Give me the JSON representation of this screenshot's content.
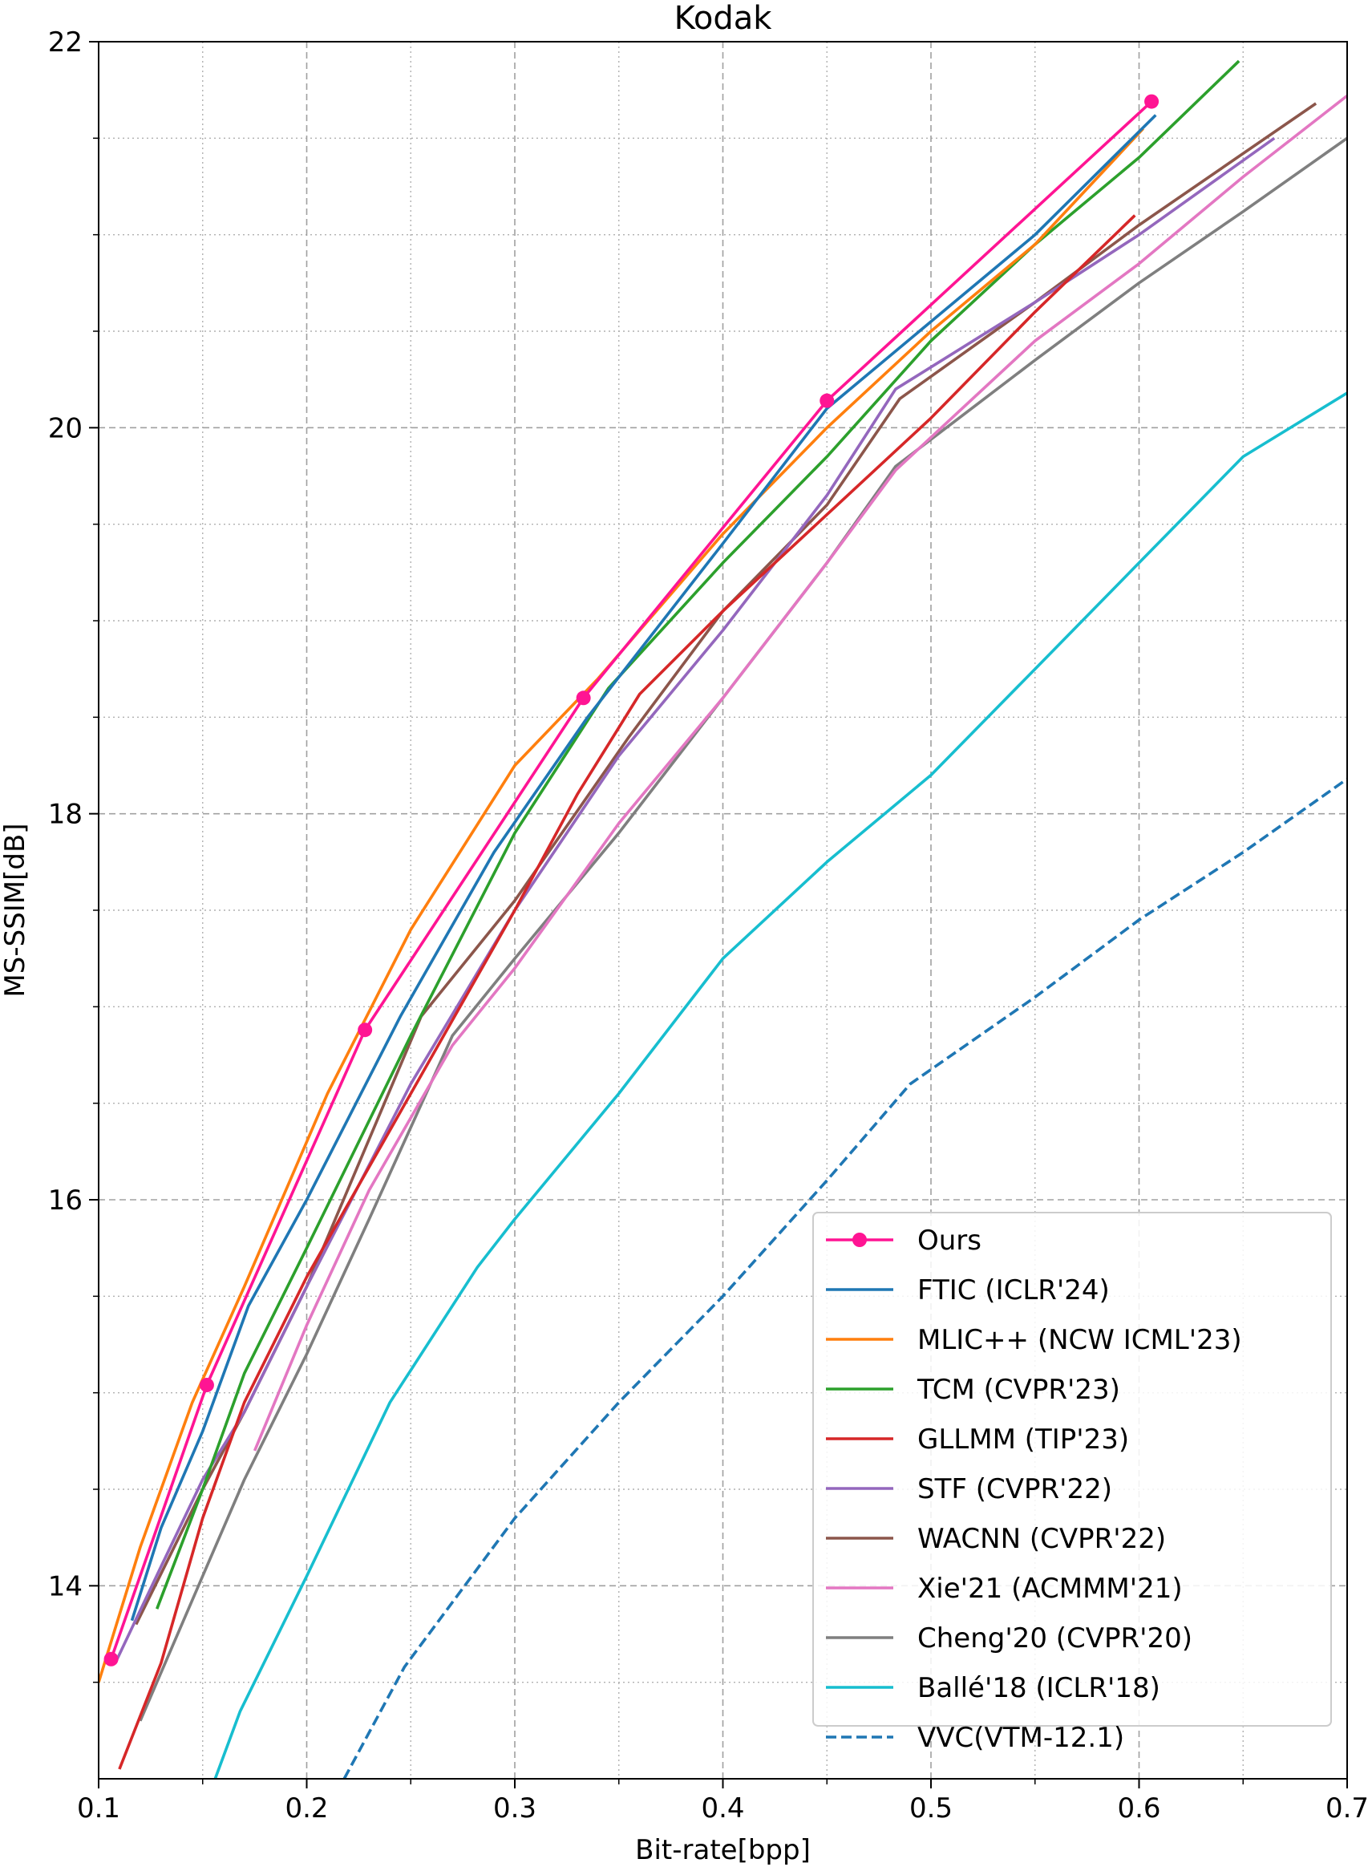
{
  "chart_data": {
    "type": "line",
    "title": "Kodak",
    "xlabel": "Bit-rate[bpp]",
    "ylabel": "MS-SSIM[dB]",
    "xlim": [
      0.1,
      0.7
    ],
    "ylim": [
      13.0,
      22.0
    ],
    "xticks": [
      0.1,
      0.2,
      0.3,
      0.4,
      0.5,
      0.6,
      0.7
    ],
    "xtick_labels": [
      "0.1",
      "0.2",
      "0.3",
      "0.4",
      "0.5",
      "0.6",
      "0.7"
    ],
    "yticks": [
      14,
      16,
      18,
      20,
      22
    ],
    "ytick_labels": [
      "14",
      "16",
      "18",
      "20",
      "22"
    ],
    "x_minor_ticks": [
      0.15,
      0.25,
      0.35,
      0.45,
      0.55,
      0.65
    ],
    "y_minor_ticks": [
      13.5,
      14.5,
      15,
      15.5,
      16.5,
      17,
      17.5,
      18.5,
      19,
      19.5,
      20.5,
      21,
      21.5
    ],
    "grid": true,
    "legend_position": "lower-right",
    "series": [
      {
        "name": "Ours",
        "color": "#ff1493",
        "style": "solid",
        "marker": "circle",
        "x": [
          0.106,
          0.152,
          0.228,
          0.333,
          0.45,
          0.606
        ],
        "y": [
          13.62,
          15.04,
          16.88,
          18.6,
          20.14,
          21.69
        ]
      },
      {
        "name": "FTIC (ICLR'24)",
        "color": "#1f77b4",
        "style": "solid",
        "marker": "none",
        "x": [
          0.116,
          0.13,
          0.15,
          0.172,
          0.2,
          0.245,
          0.29,
          0.335,
          0.4,
          0.45,
          0.5,
          0.55,
          0.608
        ],
        "y": [
          13.82,
          14.3,
          14.8,
          15.45,
          16.0,
          16.95,
          17.8,
          18.5,
          19.4,
          20.1,
          20.55,
          21.0,
          21.62
        ]
      },
      {
        "name": "MLIC++ (NCW ICML'23)",
        "color": "#ff7f0e",
        "style": "solid",
        "marker": "none",
        "x": [
          0.1,
          0.12,
          0.145,
          0.17,
          0.21,
          0.25,
          0.3,
          0.34,
          0.4,
          0.45,
          0.5,
          0.55,
          0.602
        ],
        "y": [
          13.5,
          14.2,
          14.95,
          15.55,
          16.55,
          17.4,
          18.25,
          18.7,
          19.45,
          20.0,
          20.5,
          20.95,
          21.55
        ]
      },
      {
        "name": "TCM (CVPR'23)",
        "color": "#2ca02c",
        "style": "solid",
        "marker": "none",
        "x": [
          0.128,
          0.15,
          0.17,
          0.2,
          0.25,
          0.3,
          0.345,
          0.4,
          0.45,
          0.5,
          0.55,
          0.6,
          0.648
        ],
        "y": [
          13.88,
          14.5,
          15.1,
          15.75,
          16.85,
          17.9,
          18.65,
          19.3,
          19.85,
          20.45,
          20.95,
          21.4,
          21.9
        ]
      },
      {
        "name": "GLLMM (TIP'23)",
        "color": "#d62728",
        "style": "solid",
        "marker": "none",
        "x": [
          0.11,
          0.13,
          0.15,
          0.17,
          0.2,
          0.25,
          0.3,
          0.33,
          0.36,
          0.4,
          0.45,
          0.5,
          0.55,
          0.598
        ],
        "y": [
          13.05,
          13.6,
          14.35,
          14.95,
          15.6,
          16.55,
          17.5,
          18.1,
          18.62,
          19.05,
          19.55,
          20.05,
          20.6,
          21.1
        ]
      },
      {
        "name": "STF (CVPR'22)",
        "color": "#9467bd",
        "style": "solid",
        "marker": "none",
        "x": [
          0.108,
          0.13,
          0.15,
          0.17,
          0.2,
          0.25,
          0.3,
          0.35,
          0.4,
          0.45,
          0.483,
          0.55,
          0.6,
          0.665
        ],
        "y": [
          13.6,
          14.1,
          14.55,
          14.9,
          15.55,
          16.6,
          17.5,
          18.3,
          18.95,
          19.65,
          20.2,
          20.65,
          21.0,
          21.5
        ]
      },
      {
        "name": "WACNN (CVPR'22)",
        "color": "#8c564b",
        "style": "solid",
        "marker": "none",
        "x": [
          0.118,
          0.15,
          0.17,
          0.2,
          0.255,
          0.3,
          0.355,
          0.4,
          0.45,
          0.485,
          0.55,
          0.6,
          0.685
        ],
        "y": [
          13.8,
          14.5,
          14.9,
          15.55,
          16.95,
          17.55,
          18.4,
          19.05,
          19.6,
          20.15,
          20.65,
          21.05,
          21.68
        ]
      },
      {
        "name": "Xie'21 (ACMMM'21)",
        "color": "#e377c2",
        "style": "solid",
        "marker": "none",
        "x": [
          0.175,
          0.2,
          0.23,
          0.27,
          0.3,
          0.35,
          0.4,
          0.45,
          0.483,
          0.55,
          0.6,
          0.65,
          0.7
        ],
        "y": [
          14.7,
          15.35,
          16.05,
          16.8,
          17.2,
          17.95,
          18.6,
          19.3,
          19.78,
          20.45,
          20.85,
          21.3,
          21.72
        ]
      },
      {
        "name": "Cheng'20 (CVPR'20)",
        "color": "#7f7f7f",
        "style": "solid",
        "marker": "none",
        "x": [
          0.12,
          0.15,
          0.17,
          0.2,
          0.23,
          0.27,
          0.3,
          0.35,
          0.4,
          0.45,
          0.483,
          0.55,
          0.6,
          0.65,
          0.7
        ],
        "y": [
          13.3,
          14.05,
          14.55,
          15.2,
          15.9,
          16.85,
          17.25,
          17.9,
          18.6,
          19.3,
          19.8,
          20.35,
          20.75,
          21.12,
          21.5
        ]
      },
      {
        "name": "Ballé'18 (ICLR'18)",
        "color": "#17becf",
        "style": "solid",
        "marker": "none",
        "x": [
          0.156,
          0.168,
          0.2,
          0.24,
          0.282,
          0.3,
          0.35,
          0.4,
          0.45,
          0.5,
          0.55,
          0.6,
          0.65,
          0.7
        ],
        "y": [
          13.0,
          13.35,
          14.05,
          14.95,
          15.65,
          15.9,
          16.55,
          17.25,
          17.75,
          18.2,
          18.75,
          19.3,
          19.85,
          20.18
        ]
      },
      {
        "name": "VVC(VTM-12.1)",
        "color": "#1f77b4",
        "style": "dashed",
        "marker": "none",
        "x": [
          0.218,
          0.247,
          0.3,
          0.35,
          0.4,
          0.45,
          0.49,
          0.55,
          0.6,
          0.65,
          0.7
        ],
        "y": [
          13.0,
          13.58,
          14.35,
          14.95,
          15.5,
          16.1,
          16.6,
          17.05,
          17.45,
          17.8,
          18.18
        ]
      }
    ]
  }
}
